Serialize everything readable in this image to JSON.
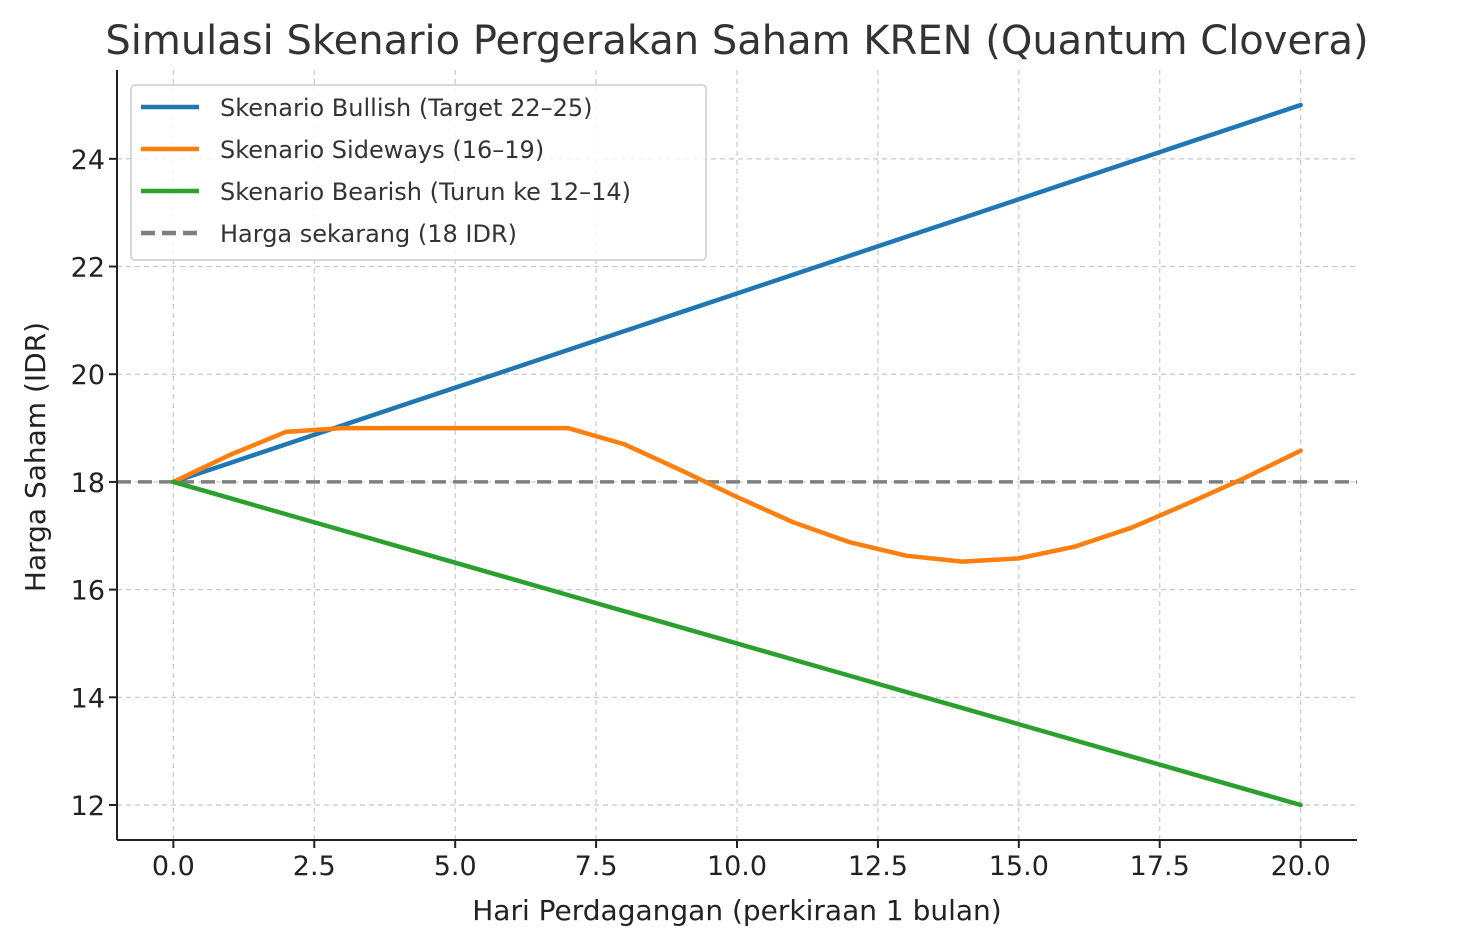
{
  "chart_data": {
    "type": "line",
    "title": "Simulasi Skenario Pergerakan Saham KREN (Quantum Clovera)",
    "xlabel": "Hari Perdagangan (perkiraan 1 bulan)",
    "ylabel": "Harga Saham (IDR)",
    "xlim": [
      -1,
      21
    ],
    "ylim": [
      11.35,
      25.65
    ],
    "xticks": [
      0,
      2.5,
      5,
      7.5,
      10,
      12.5,
      15,
      17.5,
      20
    ],
    "xtick_labels": [
      "0.0",
      "2.5",
      "5.0",
      "7.5",
      "10.0",
      "12.5",
      "15.0",
      "17.5",
      "20.0"
    ],
    "yticks": [
      12,
      14,
      16,
      18,
      20,
      22,
      24
    ],
    "ytick_labels": [
      "12",
      "14",
      "16",
      "18",
      "20",
      "22",
      "24"
    ],
    "grid": true,
    "legend_position": "top-left",
    "x": [
      0,
      1,
      2,
      3,
      4,
      5,
      6,
      7,
      8,
      9,
      10,
      11,
      12,
      13,
      14,
      15,
      16,
      17,
      18,
      19,
      20
    ],
    "series": [
      {
        "name": "Skenario Bullish (Target 22–25)",
        "color": "#1f77b4",
        "values": [
          18.0,
          18.35,
          18.7,
          19.05,
          19.4,
          19.75,
          20.1,
          20.45,
          20.8,
          21.15,
          21.5,
          21.85,
          22.2,
          22.55,
          22.9,
          23.25,
          23.6,
          23.95,
          24.3,
          24.65,
          25.0
        ]
      },
      {
        "name": "Skenario Sideways (16–19)",
        "color": "#ff7f0e",
        "values": [
          18.0,
          18.5,
          18.93,
          19.0,
          19.0,
          19.0,
          19.0,
          19.0,
          18.7,
          18.22,
          17.72,
          17.25,
          16.88,
          16.63,
          16.52,
          16.58,
          16.8,
          17.15,
          17.6,
          18.07,
          18.58
        ]
      },
      {
        "name": "Skenario Bearish (Turun ke 12–14)",
        "color": "#2ca02c",
        "values": [
          18.0,
          17.7,
          17.4,
          17.1,
          16.8,
          16.5,
          16.2,
          15.9,
          15.6,
          15.3,
          15.0,
          14.7,
          14.4,
          14.1,
          13.8,
          13.5,
          13.2,
          12.9,
          12.6,
          12.3,
          12.0
        ]
      }
    ],
    "reference_line": {
      "name": "Harga sekarang (18 IDR)",
      "color": "#7f7f7f",
      "y": 18
    }
  }
}
